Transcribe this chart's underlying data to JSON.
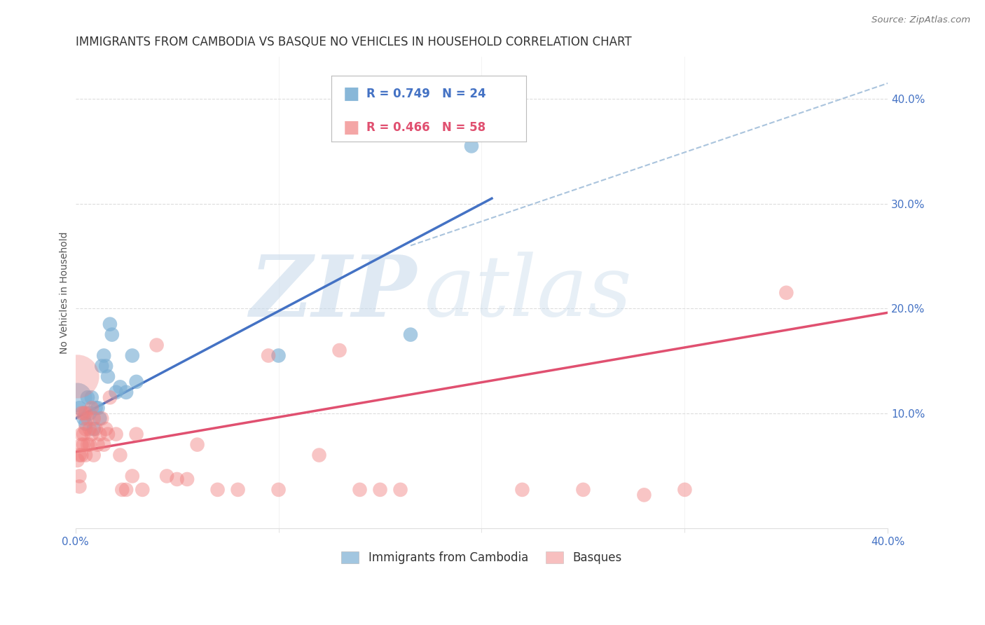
{
  "title": "IMMIGRANTS FROM CAMBODIA VS BASQUE NO VEHICLES IN HOUSEHOLD CORRELATION CHART",
  "source": "Source: ZipAtlas.com",
  "tick_color": "#4472c4",
  "ylabel": "No Vehicles in Household",
  "xlim": [
    0.0,
    0.4
  ],
  "ylim": [
    -0.01,
    0.44
  ],
  "xticks": [
    0.0,
    0.4
  ],
  "yticks_right": [
    0.1,
    0.2,
    0.3,
    0.4
  ],
  "ytick_labels_right": [
    "10.0%",
    "20.0%",
    "30.0%",
    "40.0%"
  ],
  "xtick_labels": [
    "0.0%",
    "40.0%"
  ],
  "blue_color": "#7bafd4",
  "pink_color": "#f08080",
  "blue_line_color": "#4472c4",
  "pink_line_color": "#e05070",
  "legend_r_blue": "R = 0.749",
  "legend_n_blue": "N = 24",
  "legend_r_pink": "R = 0.466",
  "legend_n_pink": "N = 58",
  "legend_label_blue": "Immigrants from Cambodia",
  "legend_label_pink": "Basques",
  "watermark_zip": "ZIP",
  "watermark_atlas": "atlas",
  "blue_line_x": [
    0.0,
    0.205
  ],
  "blue_line_y": [
    0.095,
    0.305
  ],
  "pink_line_x": [
    0.0,
    0.4
  ],
  "pink_line_y": [
    0.063,
    0.196
  ],
  "dash_line_x": [
    0.165,
    0.4
  ],
  "dash_line_y": [
    0.26,
    0.415
  ],
  "grid_color": "#dddddd",
  "background_color": "#ffffff",
  "title_fontsize": 12,
  "axis_label_fontsize": 10,
  "tick_fontsize": 11,
  "blue_scatter_x": [
    0.002,
    0.004,
    0.005,
    0.006,
    0.007,
    0.008,
    0.009,
    0.01,
    0.011,
    0.012,
    0.013,
    0.014,
    0.015,
    0.016,
    0.017,
    0.018,
    0.02,
    0.022,
    0.025,
    0.028,
    0.03,
    0.1,
    0.165,
    0.195
  ],
  "blue_scatter_y": [
    0.105,
    0.095,
    0.09,
    0.115,
    0.1,
    0.115,
    0.085,
    0.105,
    0.105,
    0.095,
    0.145,
    0.155,
    0.145,
    0.135,
    0.185,
    0.175,
    0.12,
    0.125,
    0.12,
    0.155,
    0.13,
    0.155,
    0.175,
    0.355
  ],
  "blue_scatter_size": 220,
  "blue_large_x": [
    0.001
  ],
  "blue_large_y": [
    0.115
  ],
  "blue_large_size": 900,
  "pink_large_x": [
    0.001
  ],
  "pink_large_y": [
    0.135
  ],
  "pink_large_size": 2000,
  "pink_scatter_x": [
    0.001,
    0.002,
    0.002,
    0.002,
    0.003,
    0.003,
    0.003,
    0.003,
    0.004,
    0.004,
    0.004,
    0.005,
    0.005,
    0.005,
    0.006,
    0.006,
    0.007,
    0.007,
    0.008,
    0.008,
    0.009,
    0.009,
    0.01,
    0.011,
    0.012,
    0.013,
    0.014,
    0.015,
    0.016,
    0.017,
    0.02,
    0.022,
    0.023,
    0.025,
    0.028,
    0.03,
    0.033,
    0.04,
    0.045,
    0.05,
    0.055,
    0.06,
    0.07,
    0.08,
    0.095,
    0.1,
    0.12,
    0.13,
    0.14,
    0.15,
    0.16,
    0.22,
    0.25,
    0.28,
    0.3,
    0.35
  ],
  "pink_scatter_y": [
    0.055,
    0.06,
    0.04,
    0.03,
    0.1,
    0.08,
    0.07,
    0.06,
    0.1,
    0.08,
    0.07,
    0.1,
    0.085,
    0.06,
    0.095,
    0.07,
    0.085,
    0.07,
    0.105,
    0.08,
    0.095,
    0.06,
    0.085,
    0.07,
    0.08,
    0.095,
    0.07,
    0.085,
    0.08,
    0.115,
    0.08,
    0.06,
    0.027,
    0.027,
    0.04,
    0.08,
    0.027,
    0.165,
    0.04,
    0.037,
    0.037,
    0.07,
    0.027,
    0.027,
    0.155,
    0.027,
    0.06,
    0.16,
    0.027,
    0.027,
    0.027,
    0.027,
    0.027,
    0.022,
    0.027,
    0.215
  ],
  "pink_scatter_size": 220
}
